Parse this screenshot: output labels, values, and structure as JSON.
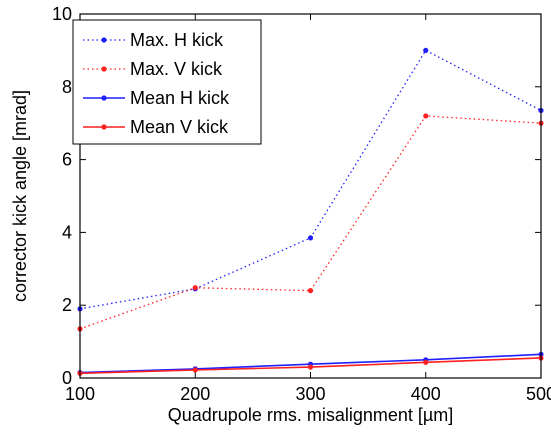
{
  "chart_data": {
    "type": "line",
    "xlabel": "Quadrupole rms. misalignment [µm]",
    "ylabel": "corrector kick angle [mrad]",
    "xlim": [
      100,
      500
    ],
    "ylim": [
      0,
      10
    ],
    "x": [
      100,
      200,
      300,
      400,
      500
    ],
    "xticks": [
      "100",
      "200",
      "300",
      "400",
      "500"
    ],
    "yticks": [
      "0",
      "2",
      "4",
      "6",
      "8",
      "10"
    ],
    "grid": false,
    "legend_position": "top-left",
    "series": [
      {
        "name": "Max. H kick",
        "color": "#2020ff",
        "style": "dotted",
        "values": [
          1.9,
          2.45,
          3.85,
          9.0,
          7.35
        ]
      },
      {
        "name": "Max. V kick",
        "color": "#ff2020",
        "style": "dotted",
        "values": [
          1.35,
          2.48,
          2.4,
          7.2,
          7.0
        ]
      },
      {
        "name": "Mean H kick",
        "color": "#2020ff",
        "style": "solid",
        "values": [
          0.15,
          0.25,
          0.38,
          0.5,
          0.65
        ]
      },
      {
        "name": "Mean V kick",
        "color": "#ff2020",
        "style": "solid",
        "values": [
          0.13,
          0.22,
          0.3,
          0.43,
          0.55
        ]
      }
    ]
  }
}
